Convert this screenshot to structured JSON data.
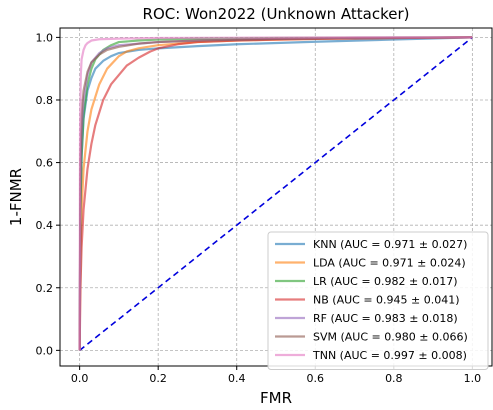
{
  "chart_data": {
    "type": "line",
    "title": "ROC: Won2022 (Unknown Attacker)",
    "xlabel": "FMR",
    "ylabel": "1-FNMR",
    "xlim": [
      -0.05,
      1.05
    ],
    "ylim": [
      -0.05,
      1.03
    ],
    "xticks": [
      "0.0",
      "0.2",
      "0.4",
      "0.6",
      "0.8",
      "1.0"
    ],
    "yticks": [
      "0.0",
      "0.2",
      "0.4",
      "0.6",
      "0.8",
      "1.0"
    ],
    "grid": true,
    "legend_position": "lower-right",
    "diagonal": {
      "x": [
        0,
        1
      ],
      "y": [
        0,
        1
      ],
      "color": "#0000dd",
      "style": "dashed"
    },
    "series": [
      {
        "name": "KNN (AUC = 0.971 ± 0.027)",
        "color": "#1f77b4",
        "x": [
          0,
          0.002,
          0.005,
          0.01,
          0.02,
          0.03,
          0.04,
          0.06,
          0.08,
          0.1,
          0.15,
          0.2,
          0.3,
          0.4,
          0.6,
          0.8,
          1.0
        ],
        "y": [
          0,
          0.45,
          0.62,
          0.74,
          0.83,
          0.87,
          0.9,
          0.925,
          0.94,
          0.95,
          0.96,
          0.965,
          0.972,
          0.978,
          0.986,
          0.993,
          1.0
        ]
      },
      {
        "name": "LDA (AUC = 0.971 ± 0.024)",
        "color": "#ff7f0e",
        "x": [
          0,
          0.002,
          0.005,
          0.01,
          0.02,
          0.03,
          0.05,
          0.07,
          0.1,
          0.12,
          0.15,
          0.2,
          0.3,
          0.4,
          0.6,
          0.8,
          1.0
        ],
        "y": [
          0,
          0.3,
          0.45,
          0.58,
          0.7,
          0.77,
          0.85,
          0.9,
          0.94,
          0.955,
          0.965,
          0.975,
          0.985,
          0.99,
          0.995,
          0.998,
          1.0
        ]
      },
      {
        "name": "LR (AUC = 0.982 ± 0.017)",
        "color": "#2ca02c",
        "x": [
          0,
          0.002,
          0.005,
          0.01,
          0.02,
          0.03,
          0.04,
          0.06,
          0.08,
          0.1,
          0.15,
          0.2,
          0.3,
          0.5,
          0.7,
          1.0
        ],
        "y": [
          0,
          0.45,
          0.62,
          0.75,
          0.85,
          0.9,
          0.93,
          0.96,
          0.975,
          0.985,
          0.99,
          0.993,
          0.996,
          0.998,
          0.999,
          1.0
        ]
      },
      {
        "name": "NB (AUC = 0.945 ± 0.041)",
        "color": "#d62728",
        "x": [
          0,
          0.002,
          0.005,
          0.01,
          0.02,
          0.03,
          0.04,
          0.06,
          0.08,
          0.1,
          0.12,
          0.15,
          0.18,
          0.2,
          0.25,
          0.3,
          0.4,
          0.5,
          0.6,
          0.8,
          1.0
        ],
        "y": [
          0,
          0.2,
          0.33,
          0.45,
          0.58,
          0.66,
          0.72,
          0.8,
          0.85,
          0.88,
          0.91,
          0.935,
          0.955,
          0.965,
          0.978,
          0.985,
          0.99,
          0.993,
          0.995,
          0.998,
          1.0
        ]
      },
      {
        "name": "RF (AUC = 0.983 ± 0.018)",
        "color": "#9467bd",
        "x": [
          0,
          0.002,
          0.005,
          0.01,
          0.02,
          0.03,
          0.05,
          0.07,
          0.1,
          0.15,
          0.2,
          0.3,
          0.5,
          0.7,
          1.0
        ],
        "y": [
          0,
          0.55,
          0.7,
          0.8,
          0.88,
          0.92,
          0.95,
          0.965,
          0.975,
          0.98,
          0.985,
          0.99,
          0.995,
          0.998,
          1.0
        ]
      },
      {
        "name": "SVM (AUC = 0.980 ± 0.066)",
        "color": "#8c564b",
        "x": [
          0,
          0.002,
          0.005,
          0.01,
          0.02,
          0.03,
          0.05,
          0.07,
          0.1,
          0.15,
          0.2,
          0.3,
          0.5,
          0.7,
          1.0
        ],
        "y": [
          0,
          0.6,
          0.75,
          0.83,
          0.89,
          0.92,
          0.945,
          0.96,
          0.97,
          0.98,
          0.985,
          0.99,
          0.995,
          0.998,
          1.0
        ]
      },
      {
        "name": "TNN (AUC = 0.997 ± 0.008)",
        "color": "#e377c2",
        "x": [
          0,
          0.001,
          0.003,
          0.005,
          0.01,
          0.015,
          0.02,
          0.03,
          0.05,
          0.1,
          0.2,
          0.4,
          0.7,
          1.0
        ],
        "y": [
          0,
          0.7,
          0.88,
          0.93,
          0.96,
          0.975,
          0.982,
          0.99,
          0.994,
          0.996,
          0.998,
          0.999,
          1.0,
          1.0
        ]
      }
    ]
  }
}
